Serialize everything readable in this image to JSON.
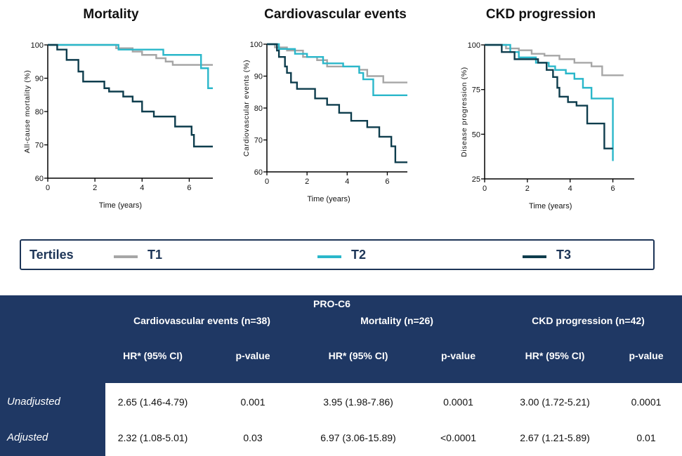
{
  "chart_data": [
    {
      "type": "line",
      "title": "Mortality",
      "xlabel": "Time (years)",
      "ylabel": "All-cause mortality (%)",
      "xlim": [
        0,
        7
      ],
      "ylim": [
        60,
        100
      ],
      "xticks": [
        0,
        2,
        4,
        6
      ],
      "yticks": [
        60,
        70,
        80,
        90,
        100
      ],
      "series": [
        {
          "name": "T1",
          "color": "#a6a6a6",
          "x": [
            0,
            2.9,
            3.6,
            4.0,
            4.6,
            5.0,
            5.3,
            7.0
          ],
          "y": [
            100,
            99,
            98,
            97,
            96,
            95,
            94,
            94
          ]
        },
        {
          "name": "T2",
          "color": "#2ab7ca",
          "x": [
            0,
            3.0,
            4.9,
            6.5,
            6.8,
            7.0
          ],
          "y": [
            100,
            98.6,
            97,
            93,
            87,
            87
          ]
        },
        {
          "name": "T3",
          "color": "#0e3d4d",
          "x": [
            0,
            0.4,
            0.8,
            1.3,
            1.5,
            2.4,
            2.6,
            3.2,
            3.6,
            4.0,
            4.5,
            5.4,
            6.1,
            6.2,
            7.0
          ],
          "y": [
            100,
            98.6,
            95.5,
            92,
            89,
            87,
            86,
            84.5,
            83,
            80,
            78.5,
            75.5,
            73,
            69.5,
            69.5
          ]
        }
      ]
    },
    {
      "type": "line",
      "title": "Cardiovascular events",
      "xlabel": "Time (years)",
      "ylabel": "Cardiovascular events (%)",
      "xlim": [
        0,
        7
      ],
      "ylim": [
        60,
        100
      ],
      "xticks": [
        0,
        2,
        4,
        6
      ],
      "yticks": [
        60,
        70,
        80,
        90,
        100
      ],
      "series": [
        {
          "name": "T1",
          "color": "#a6a6a6",
          "x": [
            0,
            0.4,
            1.0,
            1.8,
            2.5,
            3.0,
            4.6,
            5.0,
            5.8,
            7.0
          ],
          "y": [
            100,
            99,
            98,
            96,
            95,
            93,
            92,
            90,
            88,
            88
          ]
        },
        {
          "name": "T2",
          "color": "#2ab7ca",
          "x": [
            0,
            0.6,
            1.4,
            2.0,
            2.8,
            3.8,
            4.6,
            4.8,
            5.3,
            7.0
          ],
          "y": [
            100,
            98.5,
            97,
            96,
            94,
            93,
            91,
            89,
            84,
            84
          ]
        },
        {
          "name": "T3",
          "color": "#0e3d4d",
          "x": [
            0,
            0.5,
            0.6,
            0.9,
            1.0,
            1.2,
            1.5,
            2.4,
            3.0,
            3.6,
            4.2,
            5.0,
            5.6,
            6.2,
            6.4,
            7.0
          ],
          "y": [
            100,
            98,
            96,
            93,
            91,
            88,
            86,
            83,
            81,
            78.5,
            76,
            74,
            71,
            68,
            63,
            63
          ]
        }
      ]
    },
    {
      "type": "line",
      "title": "CKD progression",
      "xlabel": "Time (years)",
      "ylabel": "Disease progression (%)",
      "xlim": [
        0,
        7
      ],
      "ylim": [
        25,
        100
      ],
      "xticks": [
        0,
        2,
        4,
        6
      ],
      "yticks": [
        25,
        50,
        75,
        100
      ],
      "series": [
        {
          "name": "T1",
          "color": "#a6a6a6",
          "x": [
            0,
            1.0,
            1.6,
            2.2,
            2.8,
            3.5,
            4.2,
            5.0,
            5.5,
            6.5
          ],
          "y": [
            100,
            98,
            97,
            95,
            94,
            92,
            90,
            88,
            83,
            83
          ]
        },
        {
          "name": "T2",
          "color": "#2ab7ca",
          "x": [
            0,
            1.2,
            1.6,
            2.4,
            3.0,
            3.3,
            3.8,
            4.2,
            4.6,
            5.0,
            5.8,
            6.0
          ],
          "y": [
            100,
            96,
            93,
            90,
            88,
            86,
            84,
            81,
            76,
            70,
            70,
            35
          ]
        },
        {
          "name": "T3",
          "color": "#0e3d4d",
          "x": [
            0,
            0.8,
            1.4,
            2.5,
            2.9,
            3.2,
            3.4,
            3.5,
            3.9,
            4.3,
            4.8,
            5.6,
            6.0
          ],
          "y": [
            100,
            96,
            92,
            90,
            86,
            82,
            76,
            71,
            68,
            66,
            56,
            42,
            42
          ]
        }
      ]
    }
  ],
  "legend": {
    "title": "Tertiles",
    "items": [
      {
        "label": "T1",
        "color": "#a6a6a6"
      },
      {
        "label": "T2",
        "color": "#2ab7ca"
      },
      {
        "label": "T3",
        "color": "#0e3d4d"
      }
    ]
  },
  "table": {
    "title": "PRO-C6",
    "groups": [
      "Cardiovascular events (n=38)",
      "Mortality (n=26)",
      "CKD progression (n=42)"
    ],
    "col_hr": "HR* (95% CI)",
    "col_p": "p-value",
    "rows": [
      {
        "label": "Unadjusted",
        "values": [
          "2.65 (1.46-4.79)",
          "0.001",
          "3.95 (1.98-7.86)",
          "0.0001",
          "3.00 (1.72-5.21)",
          "0.0001"
        ]
      },
      {
        "label": "Adjusted",
        "values": [
          "2.32 (1.08-5.01)",
          "0.03",
          "6.97 (3.06-15.89)",
          "<0.0001",
          "2.67 (1.21-5.89)",
          "0.01"
        ]
      }
    ]
  }
}
